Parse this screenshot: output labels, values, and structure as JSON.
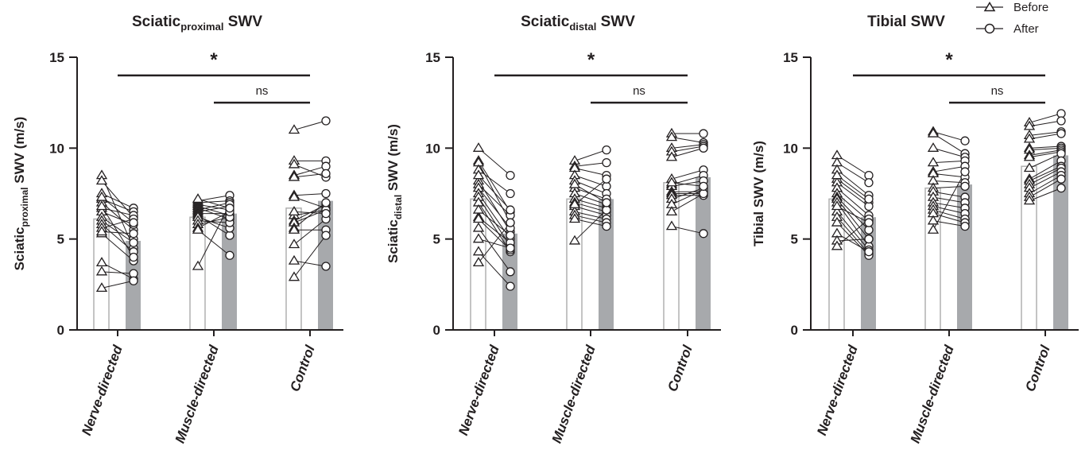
{
  "chart_data": [
    {
      "type": "bar",
      "title": {
        "main": "Sciatic",
        "sub": "proximal",
        "tail": " SWV"
      },
      "ylabel": {
        "main": "Sciatic",
        "sub": "proximal",
        "tail": " SWV (m/s)"
      },
      "ylim": [
        0,
        15
      ],
      "yticks": [
        "0",
        "5",
        "10",
        "15"
      ],
      "categories": [
        "Nerve-directed",
        "Muscle-directed",
        "Control"
      ],
      "series": [
        {
          "name": "Before",
          "values": [
            6.1,
            6.2,
            6.7
          ]
        },
        {
          "name": "After",
          "values": [
            4.9,
            6.4,
            7.1
          ]
        }
      ],
      "pairs": [
        [
          [
            8.5,
            4.5
          ],
          [
            8.2,
            6.2
          ],
          [
            7.5,
            6.7
          ],
          [
            7.2,
            6.5
          ],
          [
            7.0,
            5.5
          ],
          [
            6.7,
            6.3
          ],
          [
            6.5,
            5.8
          ],
          [
            6.2,
            5.0
          ],
          [
            6.0,
            4.8
          ],
          [
            5.8,
            4.3
          ],
          [
            5.6,
            6.1
          ],
          [
            5.3,
            3.8
          ],
          [
            3.7,
            2.8
          ],
          [
            3.2,
            3.1
          ],
          [
            2.3,
            2.7
          ],
          [
            6.8,
            4.0
          ],
          [
            5.4,
            5.3
          ],
          [
            7.3,
            5.9
          ]
        ],
        [
          [
            7.1,
            7.4
          ],
          [
            7.0,
            7.1
          ],
          [
            6.9,
            6.6
          ],
          [
            6.8,
            6.3
          ],
          [
            6.7,
            6.1
          ],
          [
            6.6,
            7.0
          ],
          [
            6.5,
            6.8
          ],
          [
            6.4,
            6.4
          ],
          [
            6.3,
            5.2
          ],
          [
            6.2,
            5.6
          ],
          [
            6.0,
            5.9
          ],
          [
            5.8,
            6.2
          ],
          [
            5.6,
            6.5
          ],
          [
            5.5,
            4.1
          ],
          [
            3.5,
            6.9
          ],
          [
            7.2,
            6.7
          ]
        ],
        [
          [
            11.0,
            11.5
          ],
          [
            9.3,
            9.3
          ],
          [
            9.1,
            8.4
          ],
          [
            8.5,
            9.0
          ],
          [
            8.4,
            8.6
          ],
          [
            7.4,
            7.5
          ],
          [
            7.3,
            6.7
          ],
          [
            6.3,
            6.6
          ],
          [
            6.0,
            6.9
          ],
          [
            5.9,
            6.6
          ],
          [
            5.6,
            7.0
          ],
          [
            5.5,
            5.5
          ],
          [
            4.7,
            6.1
          ],
          [
            3.8,
            3.5
          ],
          [
            2.9,
            5.2
          ],
          [
            6.5,
            6.4
          ]
        ]
      ],
      "sig": [
        {
          "label": "*",
          "from": 0,
          "to": 2,
          "y": 14.0
        },
        {
          "label": "ns",
          "from": 1,
          "to": 2,
          "y": 12.5
        }
      ]
    },
    {
      "type": "bar",
      "title": {
        "main": "Sciatic",
        "sub": "distal",
        "tail": " SWV"
      },
      "ylabel": {
        "main": "Sciatic",
        "sub": "distal",
        "tail": " SWV (m/s)"
      },
      "ylim": [
        0,
        15
      ],
      "yticks": [
        "0",
        "5",
        "10",
        "15"
      ],
      "categories": [
        "Nerve-directed",
        "Muscle-directed",
        "Control"
      ],
      "series": [
        {
          "name": "Before",
          "values": [
            7.2,
            7.2,
            8.1
          ]
        },
        {
          "name": "After",
          "values": [
            5.3,
            7.2,
            8.4
          ]
        }
      ],
      "pairs": [
        [
          [
            10.0,
            8.5
          ],
          [
            9.3,
            6.5
          ],
          [
            9.2,
            5.9
          ],
          [
            8.8,
            7.5
          ],
          [
            8.2,
            5.4
          ],
          [
            8.0,
            6.3
          ],
          [
            7.8,
            5.6
          ],
          [
            7.5,
            5.0
          ],
          [
            7.3,
            4.6
          ],
          [
            7.0,
            4.3
          ],
          [
            6.2,
            4.8
          ],
          [
            6.1,
            4.4
          ],
          [
            5.6,
            3.2
          ],
          [
            5.0,
            4.5
          ],
          [
            4.3,
            2.4
          ],
          [
            3.7,
            5.9
          ],
          [
            8.5,
            6.6
          ],
          [
            6.6,
            5.2
          ]
        ],
        [
          [
            9.3,
            9.9
          ],
          [
            9.0,
            9.2
          ],
          [
            8.9,
            8.5
          ],
          [
            8.5,
            7.9
          ],
          [
            8.2,
            7.5
          ],
          [
            7.8,
            7.2
          ],
          [
            7.5,
            6.9
          ],
          [
            7.2,
            6.7
          ],
          [
            7.0,
            6.5
          ],
          [
            6.8,
            6.3
          ],
          [
            6.5,
            6.1
          ],
          [
            6.3,
            5.9
          ],
          [
            6.1,
            5.7
          ],
          [
            4.9,
            6.6
          ],
          [
            8.0,
            7.0
          ],
          [
            6.9,
            8.3
          ]
        ],
        [
          [
            10.8,
            10.8
          ],
          [
            10.6,
            10.3
          ],
          [
            10.0,
            10.2
          ],
          [
            9.8,
            10.1
          ],
          [
            8.3,
            8.8
          ],
          [
            8.0,
            8.5
          ],
          [
            7.9,
            8.2
          ],
          [
            7.6,
            7.6
          ],
          [
            7.5,
            7.5
          ],
          [
            7.4,
            7.4
          ],
          [
            7.2,
            7.8
          ],
          [
            6.9,
            7.7
          ],
          [
            6.5,
            7.5
          ],
          [
            5.7,
            5.3
          ],
          [
            9.5,
            10.0
          ],
          [
            8.1,
            7.9
          ]
        ]
      ],
      "sig": [
        {
          "label": "*",
          "from": 0,
          "to": 2,
          "y": 14.0
        },
        {
          "label": "ns",
          "from": 1,
          "to": 2,
          "y": 12.5
        }
      ]
    },
    {
      "type": "bar",
      "title": {
        "main": "Tibial SWV",
        "sub": "",
        "tail": ""
      },
      "ylabel": {
        "main": "Tibial SWV (m/s)",
        "sub": "",
        "tail": ""
      },
      "ylim": [
        0,
        15
      ],
      "yticks": [
        "0",
        "5",
        "10",
        "15"
      ],
      "categories": [
        "Nerve-directed",
        "Muscle-directed",
        "Control"
      ],
      "series": [
        {
          "name": "Before",
          "values": [
            7.2,
            7.8,
            9.0
          ]
        },
        {
          "name": "After",
          "values": [
            6.2,
            8.0,
            9.6
          ]
        }
      ],
      "pairs": [
        [
          [
            9.6,
            8.5
          ],
          [
            9.2,
            8.1
          ],
          [
            8.8,
            7.4
          ],
          [
            8.3,
            7.0
          ],
          [
            8.1,
            6.8
          ],
          [
            7.8,
            6.3
          ],
          [
            7.5,
            6.0
          ],
          [
            7.3,
            5.5
          ],
          [
            7.2,
            5.0
          ],
          [
            7.0,
            4.6
          ],
          [
            6.5,
            4.4
          ],
          [
            6.2,
            4.2
          ],
          [
            5.9,
            4.1
          ],
          [
            5.3,
            4.3
          ],
          [
            4.9,
            5.0
          ],
          [
            4.6,
            6.1
          ],
          [
            8.5,
            7.2
          ],
          [
            6.8,
            5.9
          ]
        ],
        [
          [
            10.9,
            10.4
          ],
          [
            10.8,
            9.7
          ],
          [
            10.0,
            9.5
          ],
          [
            9.2,
            9.3
          ],
          [
            8.7,
            9.0
          ],
          [
            8.6,
            8.4
          ],
          [
            8.2,
            8.1
          ],
          [
            7.8,
            7.9
          ],
          [
            7.6,
            7.3
          ],
          [
            7.3,
            7.0
          ],
          [
            7.0,
            6.7
          ],
          [
            6.8,
            6.4
          ],
          [
            6.6,
            6.1
          ],
          [
            6.4,
            5.9
          ],
          [
            6.0,
            5.7
          ],
          [
            5.5,
            8.7
          ]
        ],
        [
          [
            11.4,
            11.9
          ],
          [
            11.2,
            11.5
          ],
          [
            10.7,
            10.9
          ],
          [
            10.5,
            10.8
          ],
          [
            10.0,
            10.1
          ],
          [
            9.9,
            10.0
          ],
          [
            9.6,
            9.9
          ],
          [
            9.5,
            9.8
          ],
          [
            8.9,
            9.7
          ],
          [
            8.3,
            9.3
          ],
          [
            8.2,
            9.0
          ],
          [
            8.0,
            8.9
          ],
          [
            7.8,
            8.7
          ],
          [
            7.5,
            8.5
          ],
          [
            7.3,
            8.3
          ],
          [
            7.1,
            7.8
          ]
        ]
      ],
      "sig": [
        {
          "label": "*",
          "from": 0,
          "to": 2,
          "y": 14.0
        },
        {
          "label": "ns",
          "from": 1,
          "to": 2,
          "y": 12.5
        }
      ]
    }
  ],
  "legend": {
    "before_label": "Before",
    "after_label": "After",
    "placement": "top-right"
  },
  "colors": {
    "before_bar": "#ffffff",
    "before_edge": "#b0b0b0",
    "after_bar": "#a7a9ac",
    "ink": "#231f20"
  }
}
